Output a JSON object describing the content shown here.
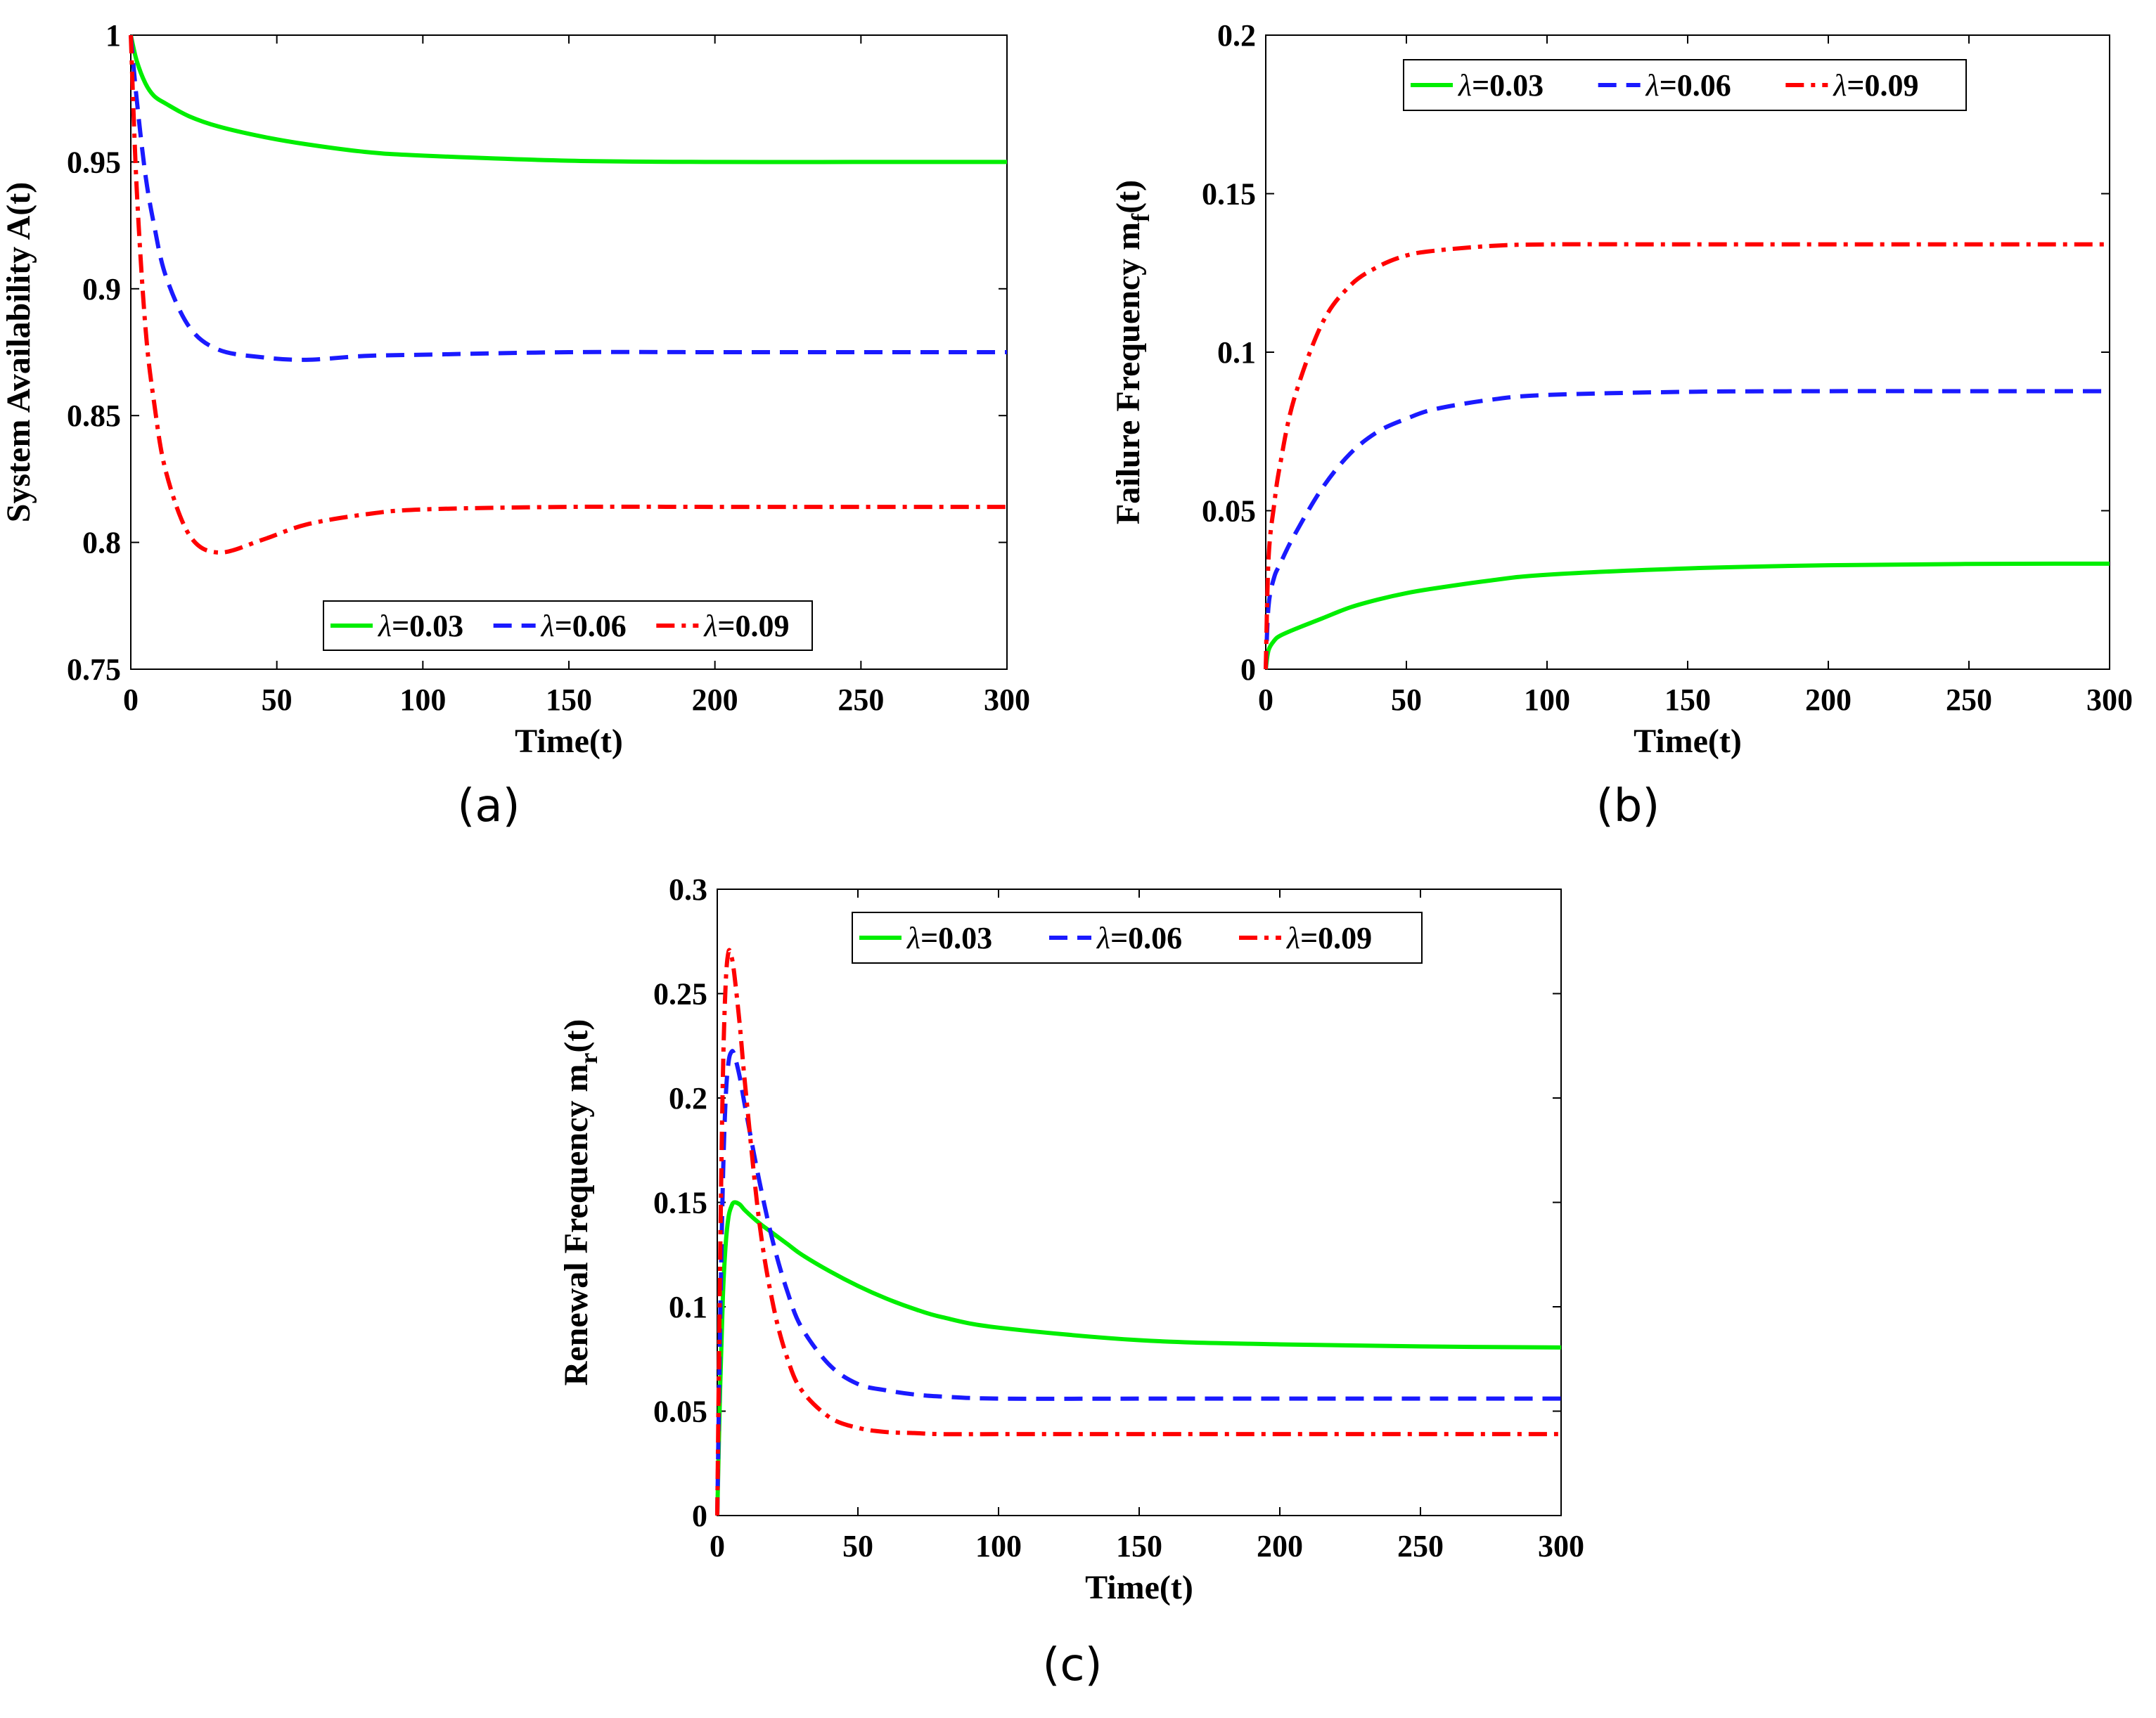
{
  "chart_data": [
    {
      "type": "line",
      "panel": "a",
      "caption": "(a)",
      "title": "",
      "xlabel": "Time(t)",
      "ylabel": "System Availability A(t)",
      "xlim": [
        0,
        300
      ],
      "ylim": [
        0.75,
        1
      ],
      "xticks": [
        0,
        50,
        100,
        150,
        200,
        250,
        300
      ],
      "xtick_labels": [
        "0",
        "50",
        "100",
        "150",
        "200",
        "250",
        "300"
      ],
      "yticks": [
        0.75,
        0.8,
        0.85,
        0.9,
        0.95,
        1
      ],
      "ytick_labels": [
        "0.75",
        "0.8",
        "0.85",
        "0.9",
        "0.95",
        "1"
      ],
      "legend_position": "bottom-center",
      "x": [
        0,
        2,
        5,
        8,
        12,
        20,
        30,
        45,
        60,
        80,
        100,
        150,
        200,
        250,
        300
      ],
      "series": [
        {
          "name": "λ=0.03",
          "symbol": "λ",
          "value_text": "=0.03",
          "color": "#00ee00",
          "dash": "solid",
          "values": [
            1,
            0.99,
            0.981,
            0.976,
            0.973,
            0.968,
            0.964,
            0.96,
            0.957,
            0.954,
            0.9525,
            0.9505,
            0.95,
            0.95,
            0.95
          ]
        },
        {
          "name": "λ=0.06",
          "symbol": "λ",
          "value_text": "=0.06",
          "color": "#1a1aff",
          "dash": "dashed",
          "values": [
            1,
            0.975,
            0.945,
            0.925,
            0.905,
            0.885,
            0.876,
            0.873,
            0.872,
            0.8735,
            0.874,
            0.875,
            0.875,
            0.875,
            0.875
          ]
        },
        {
          "name": "λ=0.09",
          "symbol": "λ",
          "value_text": "=0.09",
          "color": "#ff0000",
          "dash": "dashdot",
          "values": [
            1,
            0.94,
            0.885,
            0.855,
            0.828,
            0.803,
            0.796,
            0.801,
            0.807,
            0.811,
            0.813,
            0.814,
            0.814,
            0.814,
            0.814
          ]
        }
      ]
    },
    {
      "type": "line",
      "panel": "b",
      "caption": "(b)",
      "title": "",
      "xlabel": "Time(t)",
      "ylabel": "Failure Frequency m",
      "ylabel_sub": "f",
      "ylabel_suffix": "(t)",
      "xlim": [
        0,
        300
      ],
      "ylim": [
        0,
        0.2
      ],
      "xticks": [
        0,
        50,
        100,
        150,
        200,
        250,
        300
      ],
      "xtick_labels": [
        "0",
        "50",
        "100",
        "150",
        "200",
        "250",
        "300"
      ],
      "yticks": [
        0,
        0.05,
        0.1,
        0.15,
        0.2
      ],
      "ytick_labels": [
        "0",
        "0.05",
        "0.1",
        "0.15",
        "0.2"
      ],
      "legend_position": "top-center",
      "x": [
        0,
        1,
        3,
        5,
        10,
        20,
        30,
        40,
        50,
        60,
        80,
        100,
        150,
        200,
        250,
        300
      ],
      "series": [
        {
          "name": "λ=0.03",
          "symbol": "λ",
          "value_text": "=0.03",
          "color": "#00ee00",
          "dash": "solid",
          "values": [
            0,
            0.006,
            0.009,
            0.0105,
            0.0125,
            0.016,
            0.0195,
            0.022,
            0.024,
            0.0255,
            0.028,
            0.0298,
            0.0318,
            0.0328,
            0.0332,
            0.0333
          ]
        },
        {
          "name": "λ=0.06",
          "symbol": "λ",
          "value_text": "=0.06",
          "color": "#1a1aff",
          "dash": "dashed",
          "values": [
            0,
            0.02,
            0.029,
            0.033,
            0.042,
            0.057,
            0.068,
            0.075,
            0.079,
            0.082,
            0.085,
            0.0865,
            0.0875,
            0.0877,
            0.0877,
            0.0877
          ]
        },
        {
          "name": "λ=0.09",
          "symbol": "λ",
          "value_text": "=0.09",
          "color": "#ff0000",
          "dash": "dashdot",
          "values": [
            0,
            0.035,
            0.052,
            0.064,
            0.085,
            0.109,
            0.121,
            0.127,
            0.1305,
            0.132,
            0.1335,
            0.134,
            0.134,
            0.134,
            0.134,
            0.134
          ]
        }
      ]
    },
    {
      "type": "line",
      "panel": "c",
      "caption": "(c)",
      "title": "",
      "xlabel": "Time(t)",
      "ylabel": "Renewal Frequency m",
      "ylabel_sub": "r",
      "ylabel_suffix": "(t)",
      "xlim": [
        0,
        300
      ],
      "ylim": [
        0,
        0.3
      ],
      "xticks": [
        0,
        50,
        100,
        150,
        200,
        250,
        300
      ],
      "xtick_labels": [
        "0",
        "50",
        "100",
        "150",
        "200",
        "250",
        "300"
      ],
      "yticks": [
        0,
        0.05,
        0.1,
        0.15,
        0.2,
        0.25,
        0.3
      ],
      "ytick_labels": [
        "0",
        "0.05",
        "0.1",
        "0.15",
        "0.2",
        "0.25",
        "0.3"
      ],
      "legend_position": "top-center",
      "x": [
        0,
        1,
        2,
        3,
        4,
        5,
        6,
        8,
        10,
        15,
        20,
        25,
        30,
        40,
        50,
        60,
        70,
        80,
        100,
        150,
        200,
        250,
        300
      ],
      "series": [
        {
          "name": "λ=0.03",
          "symbol": "λ",
          "value_text": "=0.03",
          "color": "#00ee00",
          "dash": "solid",
          "values": [
            0,
            0.06,
            0.105,
            0.13,
            0.143,
            0.148,
            0.15,
            0.149,
            0.146,
            0.14,
            0.135,
            0.13,
            0.125,
            0.117,
            0.11,
            0.104,
            0.099,
            0.095,
            0.09,
            0.084,
            0.082,
            0.081,
            0.0805
          ]
        },
        {
          "name": "λ=0.06",
          "symbol": "λ",
          "value_text": "=0.06",
          "color": "#1a1aff",
          "dash": "dashed",
          "values": [
            0,
            0.09,
            0.16,
            0.2,
            0.217,
            0.222,
            0.221,
            0.21,
            0.195,
            0.16,
            0.13,
            0.107,
            0.09,
            0.072,
            0.063,
            0.06,
            0.058,
            0.057,
            0.056,
            0.056,
            0.056,
            0.056,
            0.056
          ]
        },
        {
          "name": "λ=0.09",
          "symbol": "λ",
          "value_text": "=0.09",
          "color": "#ff0000",
          "dash": "dashdot",
          "values": [
            0,
            0.12,
            0.21,
            0.255,
            0.27,
            0.268,
            0.26,
            0.235,
            0.205,
            0.14,
            0.1,
            0.075,
            0.06,
            0.047,
            0.042,
            0.04,
            0.0395,
            0.039,
            0.039,
            0.039,
            0.039,
            0.039,
            0.039
          ]
        }
      ]
    }
  ]
}
